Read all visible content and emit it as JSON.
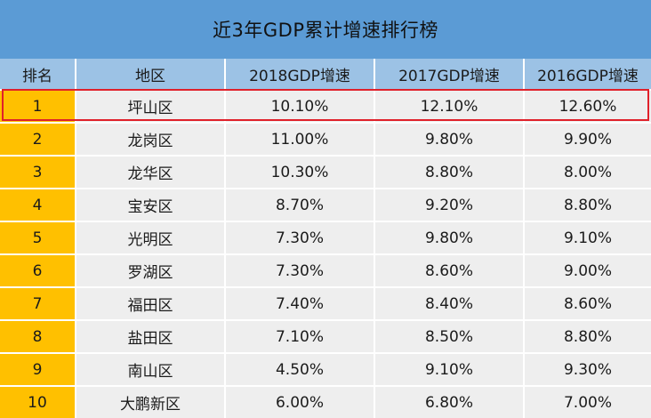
{
  "title": "近3年GDP累计增速排行榜",
  "chart_data": {
    "type": "table",
    "title": "近3年GDP累计增速排行榜",
    "columns": [
      "排名",
      "地区",
      "2018GDP增速",
      "2017GDP增速",
      "2016GDP增速"
    ],
    "rows": [
      [
        "1",
        "坪山区",
        "10.10%",
        "12.10%",
        "12.60%"
      ],
      [
        "2",
        "龙岗区",
        "11.00%",
        "9.80%",
        "9.90%"
      ],
      [
        "3",
        "龙华区",
        "10.30%",
        "8.80%",
        "8.00%"
      ],
      [
        "4",
        "宝安区",
        "8.70%",
        "9.20%",
        "8.80%"
      ],
      [
        "5",
        "光明区",
        "7.30%",
        "9.80%",
        "9.10%"
      ],
      [
        "6",
        "罗湖区",
        "7.30%",
        "8.60%",
        "9.00%"
      ],
      [
        "7",
        "福田区",
        "7.40%",
        "8.40%",
        "8.60%"
      ],
      [
        "8",
        "盐田区",
        "7.10%",
        "8.50%",
        "8.80%"
      ],
      [
        "9",
        "南山区",
        "4.50%",
        "9.10%",
        "9.30%"
      ],
      [
        "10",
        "大鹏新区",
        "6.00%",
        "6.80%",
        "7.00%"
      ]
    ],
    "highlighted_row": 0
  },
  "colors": {
    "title_bar": "#5b9bd5",
    "header": "#9cc2e5",
    "rank_column": "#ffc000",
    "data_cells": "#eeeeee",
    "highlight_border": "#e0202a"
  }
}
